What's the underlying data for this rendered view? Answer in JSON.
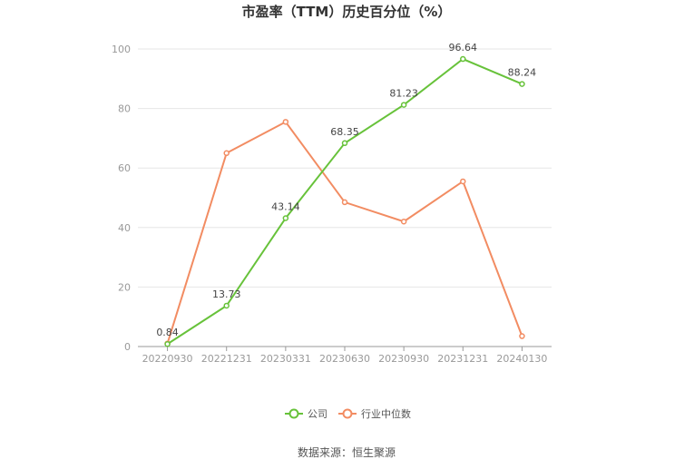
{
  "chart_data": {
    "type": "line",
    "title": "市盈率（TTM）历史百分位（%）",
    "categories": [
      "20220930",
      "20221231",
      "20230331",
      "20230630",
      "20230930",
      "20231231",
      "20240130"
    ],
    "ylim": [
      0,
      100
    ],
    "yticks": [
      0,
      20,
      40,
      60,
      80,
      100
    ],
    "grid": true,
    "legend_position": "bottom",
    "series": [
      {
        "name": "公司",
        "color": "#67c23a",
        "values": [
          0.84,
          13.73,
          43.14,
          68.35,
          81.23,
          96.64,
          88.24
        ],
        "labels": [
          "0.84",
          "13.73",
          "43.14",
          "68.35",
          "81.23",
          "96.64",
          "88.24"
        ]
      },
      {
        "name": "行业中位数",
        "color": "#f28c62",
        "values": [
          1,
          65,
          75.5,
          48.5,
          42,
          55.5,
          3.5
        ]
      }
    ],
    "source": "数据来源：恒生聚源"
  }
}
